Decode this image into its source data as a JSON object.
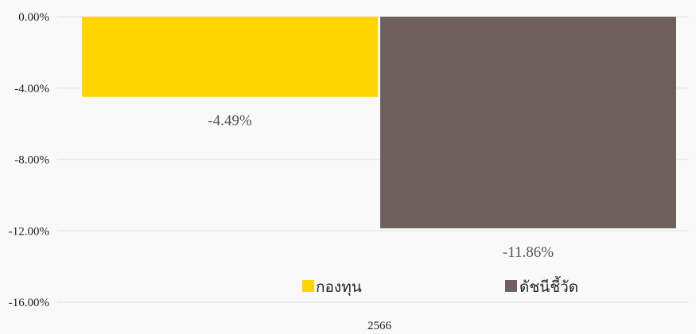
{
  "chart_data": {
    "type": "bar",
    "categories": [
      "2566"
    ],
    "series": [
      {
        "name": "กองทุน",
        "values": [
          -4.49
        ],
        "color": "#FFD400"
      },
      {
        "name": "ดัชนีชี้วัด",
        "values": [
          -11.86
        ],
        "color": "#6F5F5E"
      }
    ],
    "data_labels": [
      "-4.49%",
      "-11.86%"
    ],
    "y_ticks": [
      0,
      -4,
      -8,
      -12,
      -16
    ],
    "y_tick_labels": [
      "0.00%",
      "-4.00%",
      "-8.00%",
      "-12.00%",
      "-16.00%"
    ],
    "ylim": [
      -16,
      0
    ],
    "title": "",
    "xlabel": "",
    "ylabel": "",
    "grid": true,
    "legend_position": "bottom"
  }
}
